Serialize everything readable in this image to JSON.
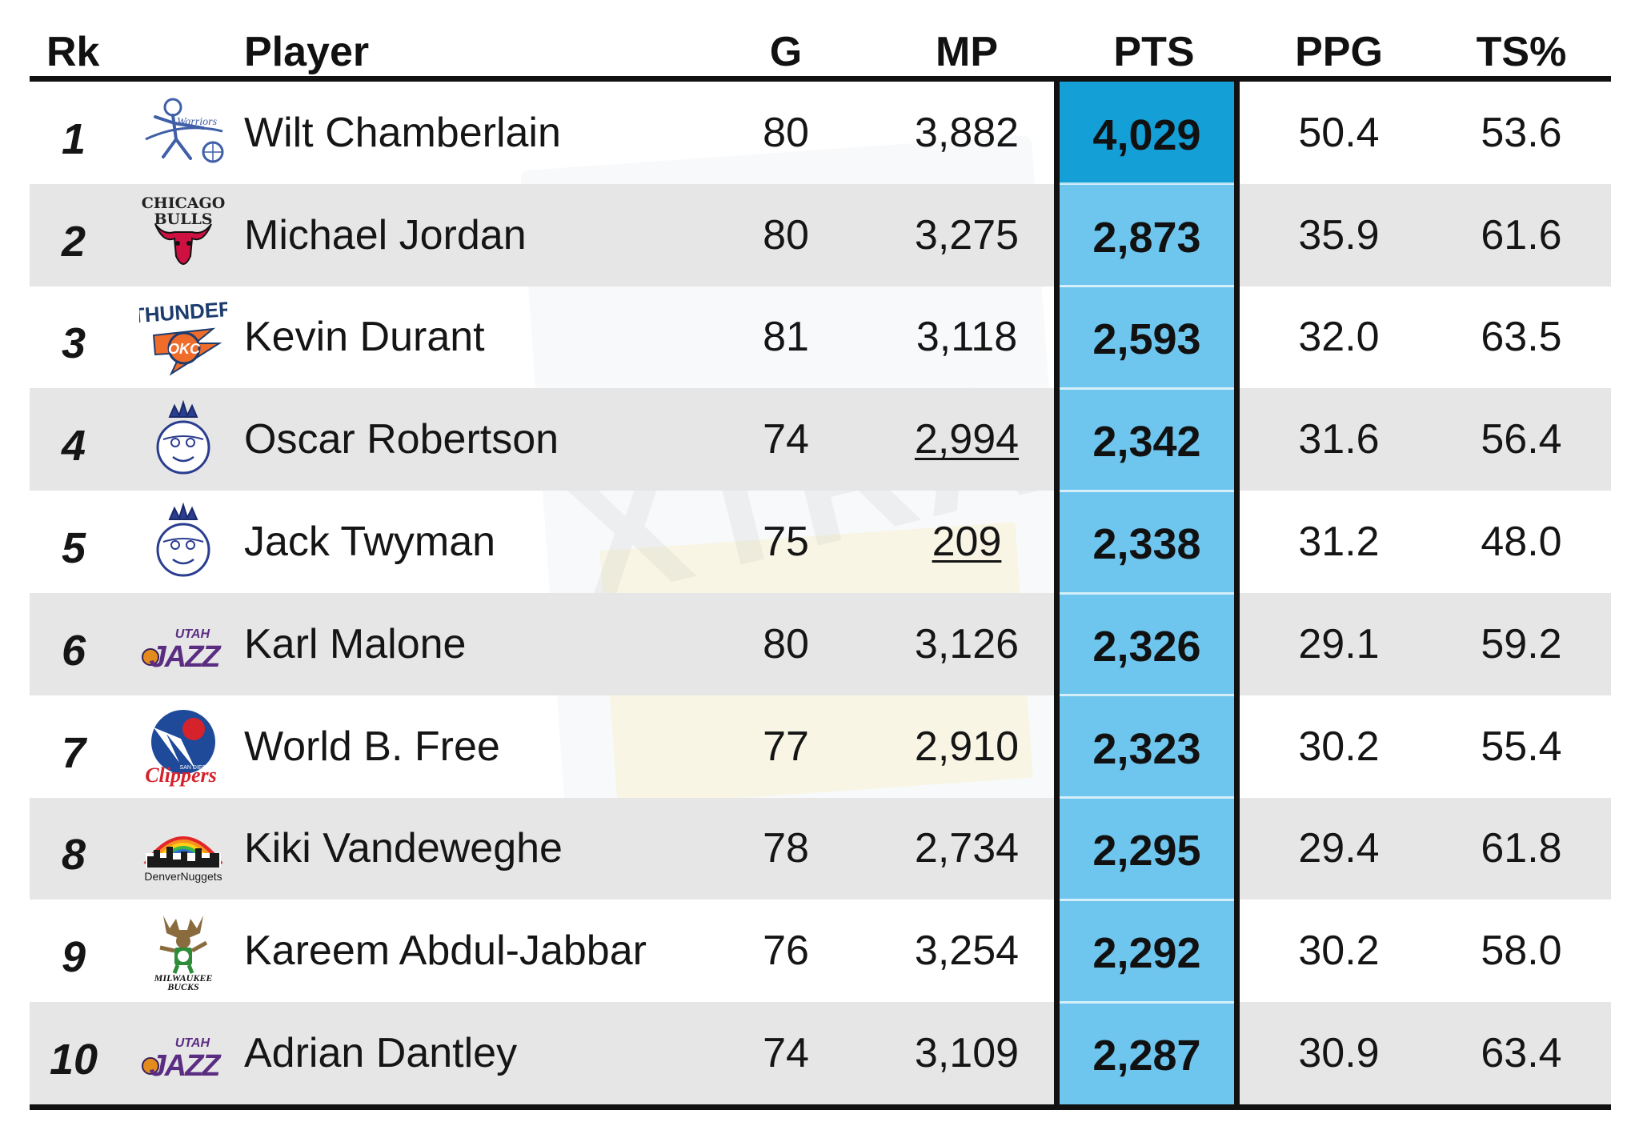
{
  "header": {
    "rk": "Rk",
    "player": "Player",
    "g": "G",
    "mp": "MP",
    "pts": "PTS",
    "ppg": "PPG",
    "ts": "TS%"
  },
  "colors": {
    "pts_top": "#149fd7",
    "pts_col": "#6ec6ee",
    "row_alt": "#e6e6e6"
  },
  "chart_data": {
    "type": "table",
    "columns": [
      "Rk",
      "Player",
      "G",
      "MP",
      "PTS",
      "PPG",
      "TS%"
    ],
    "rows": [
      {
        "rk": "1",
        "logo": "philadelphia-warriors-logo",
        "player": "Wilt Chamberlain",
        "g": "80",
        "mp": "3,882",
        "mp_underlined": false,
        "pts": "4,029",
        "ppg": "50.4",
        "ts": "53.6"
      },
      {
        "rk": "2",
        "logo": "chicago-bulls-logo",
        "logo_text": [
          "CHICAGO",
          "BULLS"
        ],
        "player": "Michael Jordan",
        "g": "80",
        "mp": "3,275",
        "mp_underlined": false,
        "pts": "2,873",
        "ppg": "35.9",
        "ts": "61.6"
      },
      {
        "rk": "3",
        "logo": "okc-thunder-logo",
        "logo_text": [
          "THUNDER",
          "OKC"
        ],
        "player": "Kevin Durant",
        "g": "81",
        "mp": "3,118",
        "mp_underlined": false,
        "pts": "2,593",
        "ppg": "32.0",
        "ts": "63.5"
      },
      {
        "rk": "4",
        "logo": "cincinnati-royals-logo",
        "player": "Oscar Robertson",
        "g": "74",
        "mp": "2,994",
        "mp_underlined": true,
        "pts": "2,342",
        "ppg": "31.6",
        "ts": "56.4"
      },
      {
        "rk": "5",
        "logo": "cincinnati-royals-logo",
        "player": "Jack Twyman",
        "g": "75",
        "mp": "209",
        "mp_underlined": true,
        "pts": "2,338",
        "ppg": "31.2",
        "ts": "48.0"
      },
      {
        "rk": "6",
        "logo": "utah-jazz-logo",
        "logo_text": [
          "UTAH",
          "JAZZ"
        ],
        "player": "Karl Malone",
        "g": "80",
        "mp": "3,126",
        "mp_underlined": false,
        "pts": "2,326",
        "ppg": "29.1",
        "ts": "59.2"
      },
      {
        "rk": "7",
        "logo": "san-diego-clippers-logo",
        "logo_text": [
          "SAN DIEGO",
          "Clippers"
        ],
        "player": "World B. Free",
        "g": "77",
        "mp": "2,910",
        "mp_underlined": false,
        "pts": "2,323",
        "ppg": "30.2",
        "ts": "55.4"
      },
      {
        "rk": "8",
        "logo": "denver-nuggets-logo",
        "logo_text": [
          "DenverNuggets"
        ],
        "player": "Kiki Vandeweghe",
        "g": "78",
        "mp": "2,734",
        "mp_underlined": false,
        "pts": "2,295",
        "ppg": "29.4",
        "ts": "61.8"
      },
      {
        "rk": "9",
        "logo": "milwaukee-bucks-logo",
        "logo_text": [
          "MILWAUKEE",
          "BUCKS"
        ],
        "player": "Kareem Abdul-Jabbar",
        "g": "76",
        "mp": "3,254",
        "mp_underlined": false,
        "pts": "2,292",
        "ppg": "30.2",
        "ts": "58.0"
      },
      {
        "rk": "10",
        "logo": "utah-jazz-logo",
        "logo_text": [
          "UTAH",
          "JAZZ"
        ],
        "player": "Adrian Dantley",
        "g": "74",
        "mp": "3,109",
        "mp_underlined": false,
        "pts": "2,287",
        "ppg": "30.9",
        "ts": "63.4"
      }
    ]
  },
  "watermark": {
    "text": "XTRA"
  }
}
